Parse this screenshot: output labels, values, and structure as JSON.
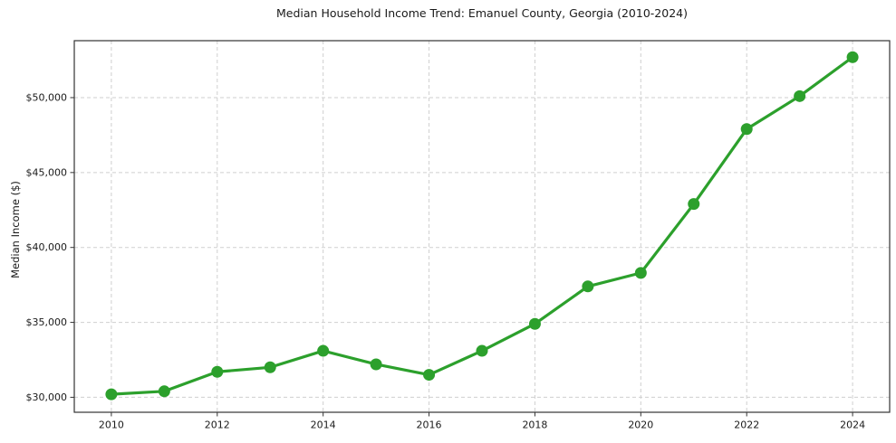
{
  "chart_data": {
    "type": "line",
    "title": "Median Household Income Trend: Emanuel County, Georgia (2010-2024)",
    "ylabel": "Median Income ($)",
    "xlabel": "",
    "x": [
      2010,
      2011,
      2012,
      2013,
      2014,
      2015,
      2016,
      2017,
      2018,
      2019,
      2020,
      2021,
      2022,
      2023,
      2024
    ],
    "series": [
      {
        "name": "Median Household Income",
        "values": [
          30200,
          30400,
          31700,
          32000,
          33100,
          32200,
          31500,
          33100,
          34900,
          37400,
          38300,
          42900,
          47900,
          50100,
          52700
        ]
      }
    ],
    "xticks": {
      "values": [
        2010,
        2012,
        2014,
        2016,
        2018,
        2020,
        2022,
        2024
      ],
      "labels": [
        "2010",
        "2012",
        "2014",
        "2016",
        "2018",
        "2020",
        "2022",
        "2024"
      ]
    },
    "yticks": {
      "values": [
        30000,
        35000,
        40000,
        45000,
        50000
      ],
      "labels": [
        "$30,000",
        "$35,000",
        "$40,000",
        "$45,000",
        "$50,000"
      ]
    },
    "xlim": [
      2009.3,
      2024.7
    ],
    "ylim": [
      29000,
      53800
    ],
    "grid": true,
    "grid_style": "dashed",
    "legend_position": "none",
    "style": {
      "line_color": "#2ca02c",
      "marker": "circle",
      "marker_color": "#2ca02c",
      "grid_color": "#cfcfcf",
      "axis_color": "#333333",
      "tick_color": "#333333",
      "text_color": "#1a1a1a",
      "background": "#ffffff"
    }
  }
}
